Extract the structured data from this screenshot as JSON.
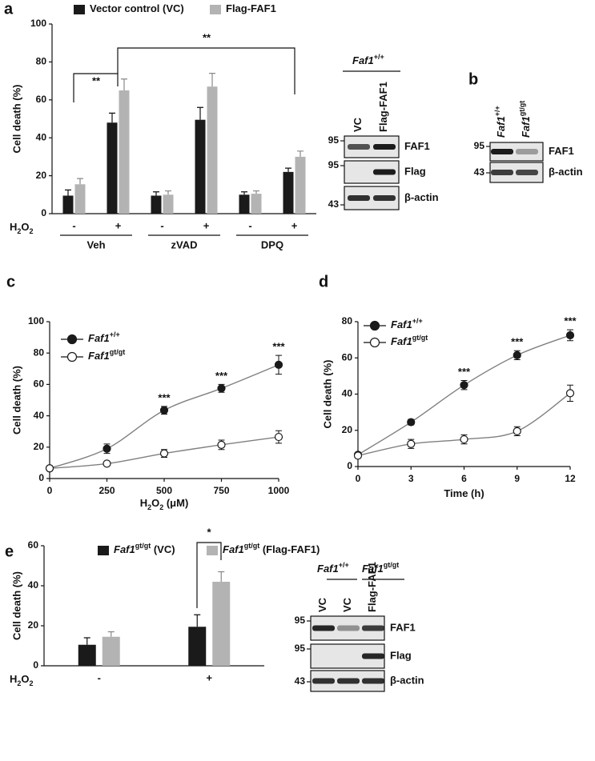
{
  "chart_data": [
    {
      "type": "bar",
      "panel": "a",
      "ylabel": "Cell death (%)",
      "row_label": [
        "H",
        "2",
        "O",
        "2"
      ],
      "categories": [
        "-",
        "+",
        "-",
        "+",
        "-",
        "+"
      ],
      "groups": [
        "Veh",
        "zVAD",
        "DPQ"
      ],
      "series": [
        {
          "name": "Vector control (VC)",
          "color": "#1a1a1a",
          "values": [
            9.5,
            48,
            9.5,
            49.5,
            10,
            22
          ],
          "errors": [
            3,
            5,
            2,
            6.5,
            1.5,
            2
          ]
        },
        {
          "name": "Flag-FAF1",
          "color": "#b3b3b3",
          "values": [
            15.5,
            65,
            10,
            67,
            10.5,
            30
          ],
          "errors": [
            3,
            6,
            2,
            7,
            1.5,
            3
          ]
        }
      ],
      "ylim": [
        0,
        100
      ],
      "yticks": [
        0,
        20,
        40,
        60,
        80,
        100
      ],
      "annotations": [
        "**",
        "**"
      ]
    },
    {
      "type": "line",
      "panel": "c",
      "ylabel": "Cell death (%)",
      "xlabel": [
        "H",
        "2",
        "O",
        "2",
        " (μM)"
      ],
      "x": [
        0,
        250,
        500,
        750,
        1000
      ],
      "xlim": [
        0,
        1000
      ],
      "xticks": [
        0,
        250,
        500,
        750,
        1000
      ],
      "ylim": [
        0,
        100
      ],
      "yticks": [
        0,
        20,
        40,
        60,
        80,
        100
      ],
      "line_color": "#808080",
      "series": [
        {
          "name": "Faf1",
          "name_sup": "+/+",
          "color": "#1a1a1a",
          "fill": "#1a1a1a",
          "values": [
            6.5,
            19,
            43.5,
            57.5,
            72.5
          ],
          "errors": [
            null,
            3,
            2.5,
            2.5,
            6
          ]
        },
        {
          "name": "Faf1",
          "name_sup": "gt/gt",
          "color": "#1a1a1a",
          "fill": "#ffffff",
          "values": [
            6.5,
            9.5,
            16,
            21.5,
            26.5
          ],
          "errors": [
            null,
            1,
            2.5,
            3,
            4
          ]
        }
      ],
      "point_labels": [
        null,
        null,
        "***",
        "***",
        "***"
      ]
    },
    {
      "type": "line",
      "panel": "d",
      "ylabel": "Cell death (%)",
      "xlabel": [
        "Time (h)"
      ],
      "x": [
        0,
        3,
        6,
        9,
        12
      ],
      "xlim": [
        0,
        12
      ],
      "xticks": [
        0,
        3,
        6,
        9,
        12
      ],
      "ylim": [
        0,
        80
      ],
      "yticks": [
        0,
        20,
        40,
        60,
        80
      ],
      "line_color": "#808080",
      "series": [
        {
          "name": "Faf1",
          "name_sup": "+/+",
          "color": "#1a1a1a",
          "fill": "#1a1a1a",
          "values": [
            6.5,
            24.5,
            45,
            61.5,
            72.5
          ],
          "errors": [
            null,
            1.5,
            2.5,
            2.5,
            3
          ]
        },
        {
          "name": "Faf1",
          "name_sup": "gt/gt",
          "color": "#1a1a1a",
          "fill": "#ffffff",
          "values": [
            6,
            12.5,
            15,
            19.5,
            40.5
          ],
          "errors": [
            null,
            2.5,
            2.5,
            2.5,
            4.5
          ]
        }
      ],
      "point_labels": [
        null,
        null,
        "***",
        "***",
        "***"
      ]
    },
    {
      "type": "bar",
      "panel": "e",
      "ylabel": "Cell death (%)",
      "row_label": [
        "H",
        "2",
        "O",
        "2"
      ],
      "categories": [
        "-",
        "+"
      ],
      "series": [
        {
          "name": "Faf1",
          "name_sup": "gt/gt",
          "name_suffix": " (VC)",
          "color": "#1a1a1a",
          "values": [
            10.5,
            19.5
          ],
          "errors": [
            3.5,
            6
          ]
        },
        {
          "name": "Faf1",
          "name_sup": "gt/gt",
          "name_suffix": " (Flag-FAF1)",
          "color": "#b3b3b3",
          "values": [
            14.5,
            42
          ],
          "errors": [
            2.5,
            5
          ]
        }
      ],
      "ylim": [
        0,
        60
      ],
      "yticks": [
        0,
        20,
        40,
        60
      ],
      "annotations": [
        "*"
      ]
    }
  ],
  "blots": [
    {
      "headers": [
        {
          "name": "Faf1",
          "name_sup": "+/+"
        }
      ],
      "lanes": [
        {
          "name": "VC"
        },
        {
          "name": "Flag-FAF1"
        }
      ],
      "rows": [
        "FAF1",
        "Flag",
        "β-actin"
      ],
      "markers": [
        95,
        95,
        43
      ]
    },
    {
      "panel": "b",
      "lanes": [
        {
          "name": "Faf1",
          "name_sup": "+/+"
        },
        {
          "name": "Faf1",
          "name_sup": "gt/gt"
        }
      ],
      "rows": [
        "FAF1",
        "β-actin"
      ],
      "markers": [
        95,
        43
      ]
    },
    {
      "headers": [
        {
          "name": "Faf1",
          "name_sup": "+/+"
        },
        {
          "name": "Faf1",
          "name_sup": "gt/gt"
        }
      ],
      "lanes": [
        {
          "name": "VC"
        },
        {
          "name": "VC"
        },
        {
          "name": "Flag-FAF1"
        }
      ],
      "rows": [
        "FAF1",
        "Flag",
        "β-actin"
      ],
      "markers": [
        95,
        95,
        43
      ]
    }
  ]
}
